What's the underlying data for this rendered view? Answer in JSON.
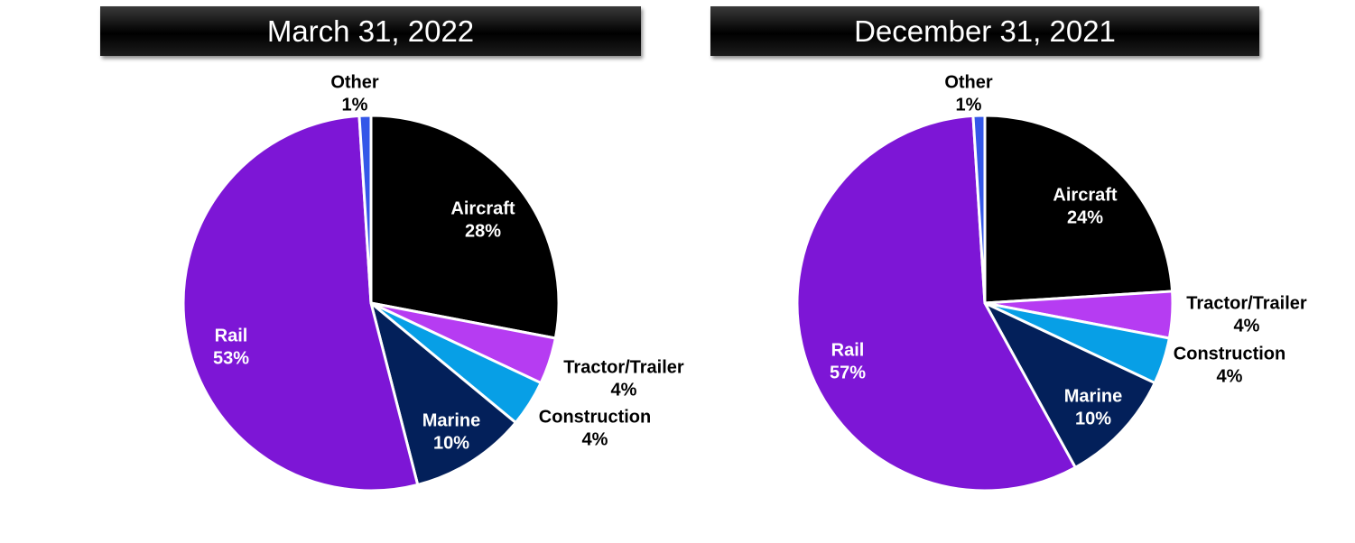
{
  "chart_data": [
    {
      "type": "pie",
      "title": "March 31, 2022",
      "categories": [
        "Aircraft",
        "Tractor/Trailer",
        "Construction",
        "Marine",
        "Rail",
        "Other"
      ],
      "values": [
        28,
        4,
        4,
        10,
        53,
        1
      ],
      "value_labels": [
        "28%",
        "4%",
        "4%",
        "10%",
        "53%",
        "1%"
      ],
      "colors": [
        "#000000",
        "#b63cf2",
        "#079fe6",
        "#03205a",
        "#7d16d6",
        "#3457e8"
      ],
      "label_colors": [
        "#ffffff",
        "#000000",
        "#000000",
        "#ffffff",
        "#ffffff",
        "#000000"
      ],
      "start_angle": "12 o'clock",
      "direction": "clockwise"
    },
    {
      "type": "pie",
      "title": "December 31, 2021",
      "categories": [
        "Aircraft",
        "Tractor/Trailer",
        "Construction",
        "Marine",
        "Rail",
        "Other"
      ],
      "values": [
        24,
        4,
        4,
        10,
        57,
        1
      ],
      "value_labels": [
        "24%",
        "4%",
        "4%",
        "10%",
        "57%",
        "1%"
      ],
      "colors": [
        "#000000",
        "#b63cf2",
        "#079fe6",
        "#03205a",
        "#7d16d6",
        "#3457e8"
      ],
      "label_colors": [
        "#ffffff",
        "#000000",
        "#000000",
        "#ffffff",
        "#ffffff",
        "#000000"
      ],
      "start_angle": "12 o'clock",
      "direction": "clockwise"
    }
  ]
}
